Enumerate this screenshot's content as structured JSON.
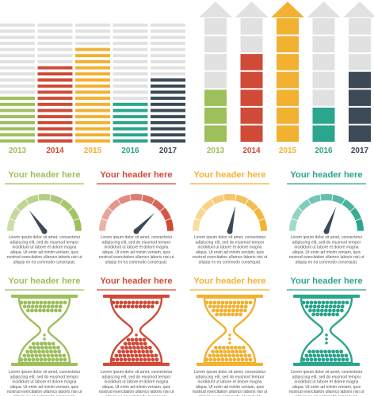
{
  "colors": {
    "green": "#9dbf5c",
    "red": "#cf4b38",
    "yellow": "#f2b131",
    "teal": "#2ba58e",
    "navy": "#3c4957",
    "grey": "#e1e1e1",
    "light_green": "#cbdda8",
    "light_red": "#eab2a8",
    "light_yellow": "#f8dda3",
    "light_teal": "#9fd9cd"
  },
  "chart_data": [
    {
      "type": "bar",
      "style": "stacked-stripe-bars",
      "categories": [
        "2013",
        "2014",
        "2015",
        "2016",
        "2017"
      ],
      "values": [
        8,
        13,
        16,
        7,
        11
      ],
      "ylim": [
        0,
        20
      ],
      "grid": false
    },
    {
      "type": "bar",
      "style": "arrow-block-bars",
      "categories": [
        "2013",
        "2014",
        "2015",
        "2016",
        "2017"
      ],
      "values": [
        3,
        5,
        7,
        2,
        4
      ],
      "ylim": [
        0,
        7
      ],
      "grid": false
    }
  ],
  "panels": [
    {
      "header": "Your header here",
      "color": "green",
      "gauge_value": 0.3,
      "hourglass_fill": 0.55
    },
    {
      "header": "Your header here",
      "color": "red",
      "gauge_value": 0.75,
      "hourglass_fill": 0.7
    },
    {
      "header": "Your header here",
      "color": "yellow",
      "gauge_value": 0.57,
      "hourglass_fill": 0.4
    },
    {
      "header": "Your header here",
      "color": "teal",
      "gauge_value": 0.62,
      "hourglass_fill": 0.3
    }
  ],
  "body_text": [
    "Lorem ipsum dolor sit amet, consectetur",
    "adipiscing elit, sed do eiusmod tempor",
    "incididunt ut labore et dolore magna",
    "aliqua. Ut enim ad minim veniam, quis",
    "nostrud exercitation ullamco laboris nisi ut",
    "aliquip ex ea commodo consequat."
  ]
}
